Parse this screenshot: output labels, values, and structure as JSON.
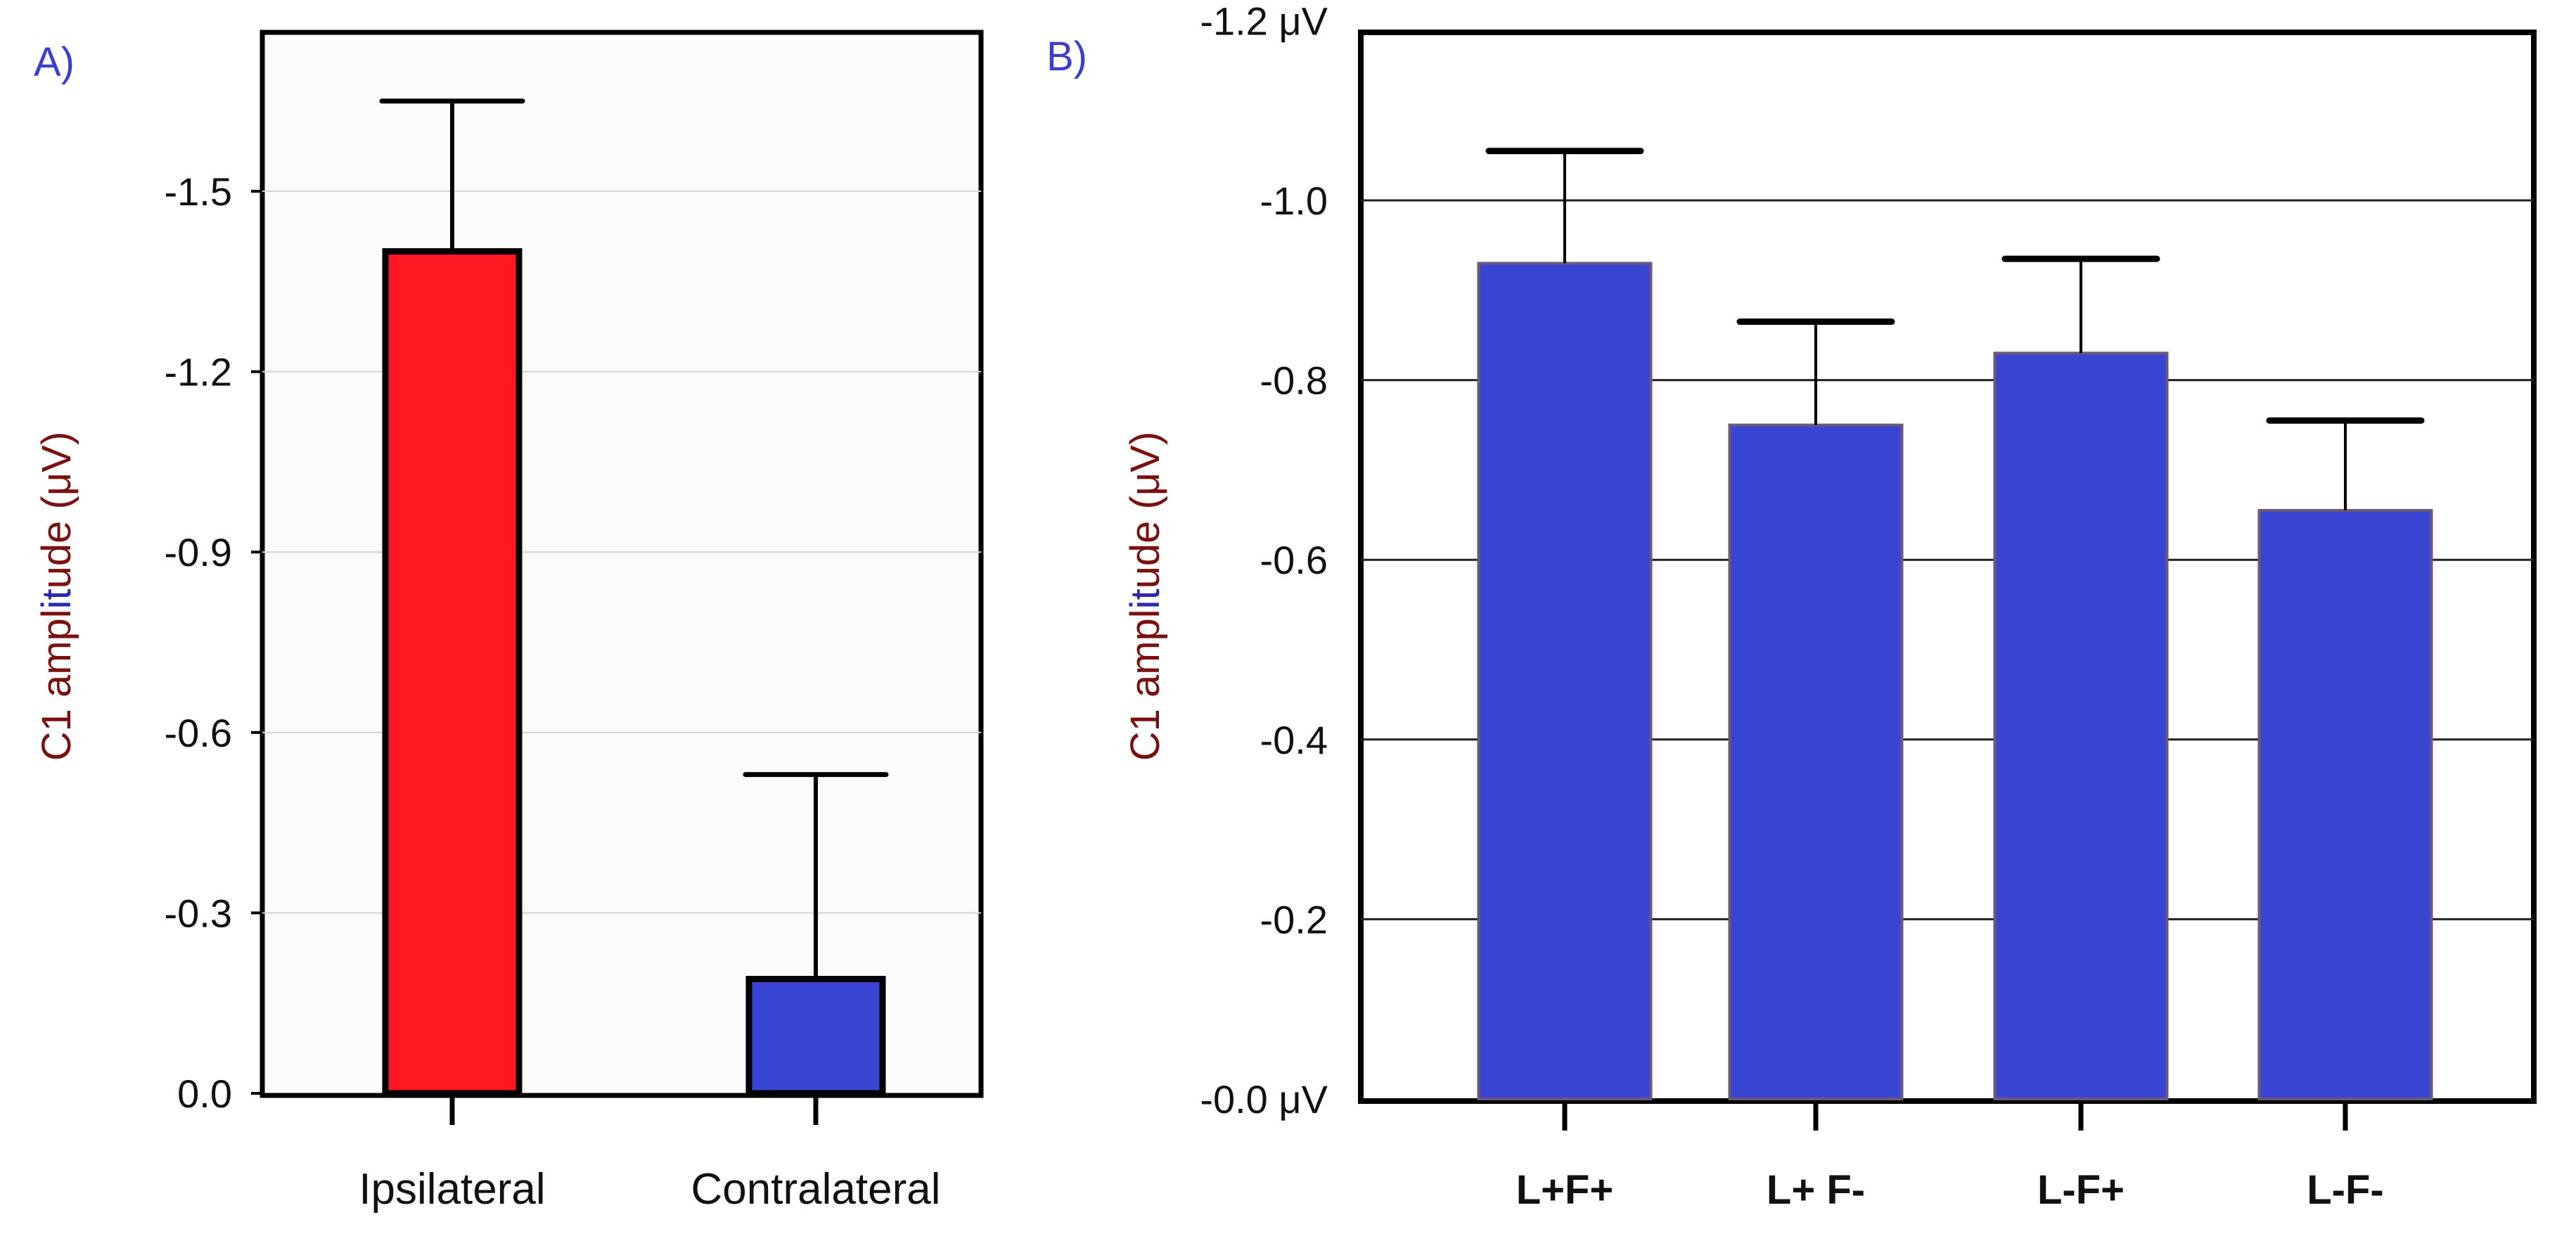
{
  "chart_data": [
    {
      "panel": "A)",
      "type": "bar",
      "ylabel": "C1 amplitude (μV)",
      "ylabel_parts": {
        "prefix": "C1 ampl",
        "mid": "it",
        "suffix": "ude (μV)"
      },
      "categories": [
        "Ipsilateral",
        "Contralateral"
      ],
      "values": [
        -1.4,
        -0.19
      ],
      "error_upper": [
        -1.65,
        -0.53
      ],
      "colors": [
        "#ff1721",
        "#3a44d2"
      ],
      "ylim": [
        0.0,
        -1.7
      ],
      "yticks": [
        0.0,
        -0.3,
        -0.6,
        -0.9,
        -1.2,
        -1.5
      ],
      "ytick_labels": [
        "0.0",
        "-0.3",
        "-0.6",
        "-0.9",
        "-1.2",
        "-1.5"
      ],
      "grid": true
    },
    {
      "panel": "B)",
      "type": "bar",
      "ylabel": "C1 amplitude (μV)",
      "ylabel_parts": {
        "prefix": "C1 ampl",
        "mid": "it",
        "suffix": "ude (μV)"
      },
      "categories": [
        "L+F+",
        "L+ F-",
        "L-F+",
        "L-F-"
      ],
      "values": [
        -0.93,
        -0.75,
        -0.83,
        -0.655
      ],
      "error_upper": [
        -1.055,
        -0.865,
        -0.935,
        -0.755
      ],
      "colors": [
        "#3a44d2",
        "#3a44d2",
        "#3a44d2",
        "#3a44d2"
      ],
      "ylim": [
        0.0,
        -1.2
      ],
      "yticks": [
        0.0,
        -0.2,
        -0.4,
        -0.6,
        -0.8,
        -1.0,
        -1.2
      ],
      "ytick_labels": [
        "-0.0 μV",
        "-0.2",
        "-0.4",
        "-0.6",
        "-0.8",
        "-1.0",
        "-1.2 μV"
      ],
      "grid": true
    }
  ]
}
